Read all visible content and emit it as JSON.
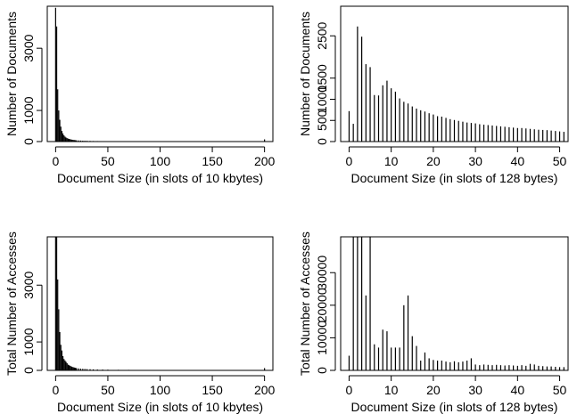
{
  "chart_data": [
    {
      "id": "p1",
      "type": "bar",
      "title": "",
      "xlabel": "Document Size (in slots of 10 kbytes)",
      "ylabel": "Number of Documents",
      "xlim": [
        -8,
        208
      ],
      "ylim": [
        0,
        4350
      ],
      "xticks": [
        0,
        50,
        100,
        150,
        200
      ],
      "yticks": [
        0,
        1000,
        3000
      ],
      "x": [
        0,
        1,
        2,
        3,
        4,
        5,
        6,
        7,
        8,
        9,
        10,
        11,
        12,
        13,
        14,
        15,
        16,
        17,
        18,
        19,
        20,
        22,
        24,
        26,
        28,
        30,
        33,
        36,
        40,
        45,
        50,
        60,
        70,
        80,
        90,
        100,
        120,
        140,
        160,
        180,
        200
      ],
      "values": [
        4300,
        3700,
        1680,
        1000,
        700,
        480,
        340,
        260,
        200,
        160,
        130,
        110,
        95,
        85,
        75,
        65,
        58,
        52,
        48,
        44,
        40,
        36,
        32,
        28,
        26,
        24,
        21,
        18,
        16,
        14,
        12,
        10,
        9,
        8,
        7,
        6,
        5,
        5,
        4,
        4,
        70
      ],
      "grid": false
    },
    {
      "id": "p2",
      "type": "bar",
      "title": "",
      "xlabel": "Document Size (in slots of 128 bytes)",
      "ylabel": "Number of Documents",
      "xlim": [
        -2,
        52
      ],
      "ylim": [
        0,
        3200
      ],
      "xticks": [
        0,
        10,
        20,
        30,
        40,
        50
      ],
      "yticks": [
        0,
        500,
        1000,
        1500,
        2500
      ],
      "x": [
        0,
        1,
        2,
        3,
        4,
        5,
        6,
        7,
        8,
        9,
        10,
        11,
        12,
        13,
        14,
        15,
        16,
        17,
        18,
        19,
        20,
        21,
        22,
        23,
        24,
        25,
        26,
        27,
        28,
        29,
        30,
        31,
        32,
        33,
        34,
        35,
        36,
        37,
        38,
        39,
        40,
        41,
        42,
        43,
        44,
        45,
        46,
        47,
        48,
        49,
        50,
        51
      ],
      "values": [
        720,
        420,
        2720,
        2480,
        1830,
        1760,
        1100,
        1090,
        1330,
        1440,
        1260,
        1180,
        1020,
        940,
        900,
        830,
        780,
        740,
        710,
        670,
        640,
        600,
        590,
        560,
        530,
        510,
        490,
        470,
        450,
        440,
        430,
        410,
        400,
        390,
        380,
        370,
        360,
        350,
        340,
        330,
        320,
        320,
        310,
        300,
        290,
        280,
        275,
        270,
        260,
        250,
        240,
        230
      ],
      "grid": false
    },
    {
      "id": "p3",
      "type": "bar",
      "title": "",
      "xlabel": "Document Size (in slots of 10 kbytes)",
      "ylabel": "Total Number of Accesses",
      "xlim": [
        -8,
        208
      ],
      "ylim": [
        0,
        4700
      ],
      "xticks": [
        0,
        50,
        100,
        150,
        200
      ],
      "yticks": [
        0,
        1000,
        3000
      ],
      "x": [
        0,
        1,
        2,
        3,
        4,
        5,
        6,
        7,
        8,
        9,
        10,
        11,
        12,
        13,
        14,
        15,
        16,
        17,
        18,
        19,
        20,
        22,
        24,
        26,
        28,
        30,
        33,
        36,
        40,
        45,
        50,
        60,
        70,
        80,
        90,
        100,
        120,
        140,
        160,
        180,
        200
      ],
      "values": [
        4700,
        4700,
        3200,
        2150,
        1350,
        900,
        700,
        500,
        400,
        350,
        300,
        250,
        200,
        180,
        160,
        140,
        120,
        110,
        100,
        90,
        80,
        70,
        60,
        55,
        50,
        45,
        40,
        35,
        30,
        28,
        25,
        20,
        18,
        15,
        12,
        10,
        8,
        8,
        6,
        6,
        80
      ],
      "grid": false
    },
    {
      "id": "p4",
      "type": "bar",
      "title": "",
      "xlabel": "Document Size (in slots of 128 bytes)",
      "ylabel": "Total Number of Accesses",
      "xlim": [
        -2,
        52
      ],
      "ylim": [
        0,
        41000
      ],
      "xticks": [
        0,
        10,
        20,
        30,
        40,
        50
      ],
      "yticks": [
        0,
        10000,
        20000,
        30000
      ],
      "x": [
        0,
        1,
        2,
        3,
        4,
        5,
        6,
        7,
        8,
        9,
        10,
        11,
        12,
        13,
        14,
        15,
        16,
        17,
        18,
        19,
        20,
        21,
        22,
        23,
        24,
        25,
        26,
        27,
        28,
        29,
        30,
        31,
        32,
        33,
        34,
        35,
        36,
        37,
        38,
        39,
        40,
        41,
        42,
        43,
        44,
        45,
        46,
        47,
        48,
        49,
        50,
        51
      ],
      "values": [
        4500,
        41000,
        41000,
        41000,
        23000,
        41000,
        8000,
        7000,
        12500,
        12000,
        7000,
        7000,
        7000,
        20000,
        23000,
        10500,
        7500,
        3000,
        5500,
        3700,
        3200,
        3000,
        3000,
        2700,
        2500,
        2800,
        2500,
        2700,
        3000,
        3700,
        1800,
        1600,
        1800,
        1700,
        1600,
        1700,
        1600,
        1500,
        1600,
        1500,
        1400,
        1600,
        1400,
        2000,
        1800,
        1400,
        1300,
        1200,
        1200,
        1100,
        1000,
        1000
      ],
      "grid": false
    }
  ]
}
